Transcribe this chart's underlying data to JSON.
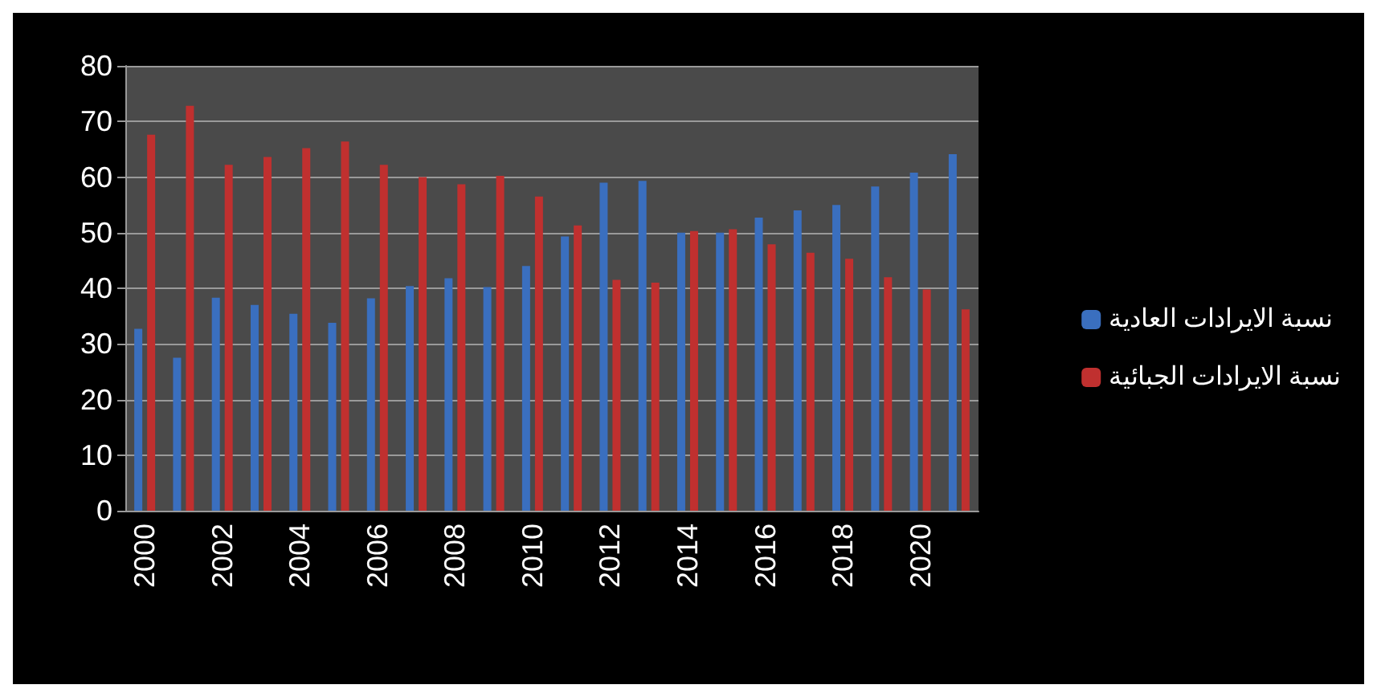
{
  "chart_data": {
    "type": "bar",
    "categories": [
      "2000",
      null,
      "2002",
      null,
      "2004",
      null,
      "2006",
      null,
      "2008",
      null,
      "2010",
      null,
      "2012",
      null,
      "2014",
      null,
      "2016",
      null,
      "2018",
      null,
      "2020",
      null
    ],
    "series": [
      {
        "name": "نسبة الايرادات العادية",
        "color": "#3a6fbf",
        "values": [
          32.7,
          27.5,
          38.3,
          37,
          35.4,
          33.8,
          38.2,
          40.4,
          41.8,
          40.2,
          44,
          49.3,
          59,
          59.3,
          50,
          50,
          52.7,
          54,
          55,
          58.3,
          60.8,
          64.1
        ]
      },
      {
        "name": "نسبة الايرادات الجبائية",
        "color": "#c0302f",
        "values": [
          67.6,
          72.8,
          62.2,
          63.6,
          65.2,
          66.4,
          62.2,
          60,
          58.7,
          60.2,
          56.5,
          51.3,
          41.5,
          41,
          50.3,
          50.6,
          47.9,
          46.4,
          45.3,
          42,
          39.8,
          36.2
        ]
      }
    ],
    "ylim": [
      0,
      80
    ],
    "yticks": [
      0,
      10,
      20,
      30,
      40,
      50,
      60,
      70,
      80
    ],
    "grid": "y",
    "legend": "right"
  }
}
